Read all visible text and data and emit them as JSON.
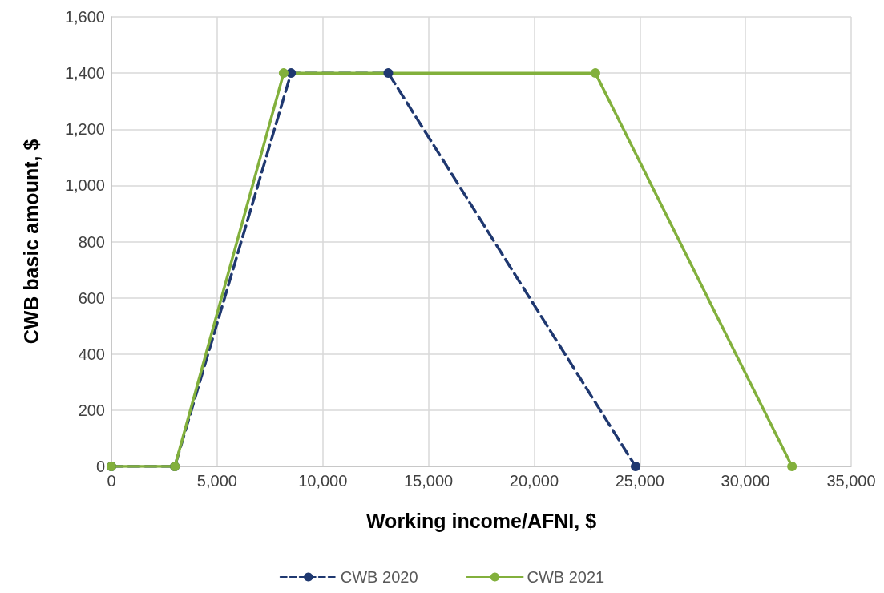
{
  "chart_data": {
    "type": "line",
    "xlabel": "Working income/AFNI, $",
    "ylabel": "CWB basic amount, $",
    "xlim": [
      0,
      35000
    ],
    "xticks": [
      {
        "value": 0,
        "label": "0"
      },
      {
        "value": 5000,
        "label": "5,000"
      },
      {
        "value": 10000,
        "label": "10,000"
      },
      {
        "value": 15000,
        "label": "15,000"
      },
      {
        "value": 20000,
        "label": "20,000"
      },
      {
        "value": 25000,
        "label": "25,000"
      },
      {
        "value": 30000,
        "label": "30,000"
      },
      {
        "value": 35000,
        "label": "35,000"
      }
    ],
    "ylim": [
      0,
      1600
    ],
    "yticks": [
      {
        "value": 0,
        "label": "0"
      },
      {
        "value": 200,
        "label": "200"
      },
      {
        "value": 400,
        "label": "400"
      },
      {
        "value": 600,
        "label": "600"
      },
      {
        "value": 800,
        "label": "800"
      },
      {
        "value": 1000,
        "label": "1,000"
      },
      {
        "value": 1200,
        "label": "1,200"
      },
      {
        "value": 1400,
        "label": "1,400"
      },
      {
        "value": 1600,
        "label": "1,600"
      }
    ],
    "grid": true,
    "legend": "bottom",
    "marker": "circle",
    "series": [
      {
        "name": "CWB 2020",
        "color": "#1f3870",
        "line_style": "dashed",
        "x": [
          0,
          3000,
          8500,
          13100,
          24800
        ],
        "values": [
          0,
          0,
          1400,
          1400,
          0
        ]
      },
      {
        "name": "CWB 2021",
        "color": "#82b03c",
        "line_style": "solid",
        "x": [
          0,
          3000,
          8150,
          22900,
          32200
        ],
        "values": [
          0,
          0,
          1400,
          1400,
          0
        ]
      }
    ]
  }
}
